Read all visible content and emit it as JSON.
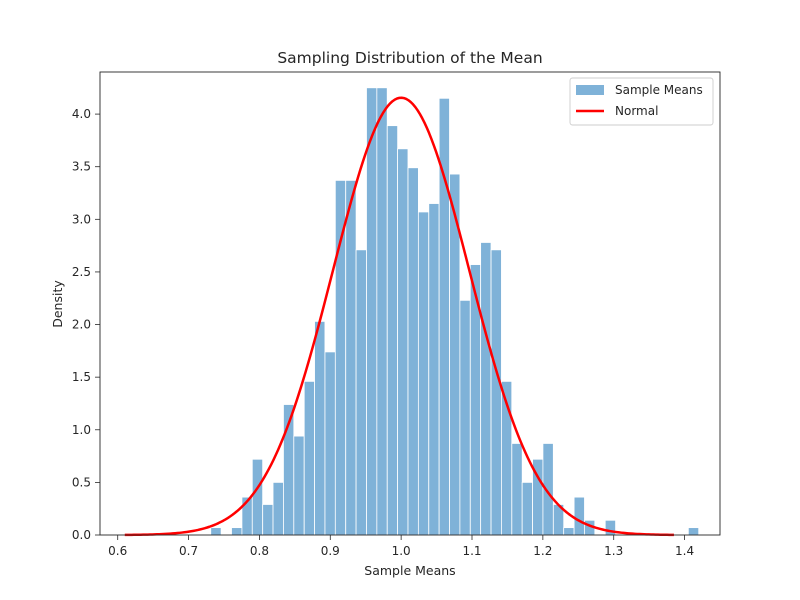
{
  "chart_data": {
    "type": "bar",
    "title": "Sampling Distribution of the Mean",
    "xlabel": "Sample Means",
    "ylabel": "Density",
    "xlim": [
      0.575,
      1.45
    ],
    "ylim": [
      0,
      4.4
    ],
    "xticks": [
      "0.6",
      "0.7",
      "0.8",
      "0.9",
      "1.0",
      "1.1",
      "1.2",
      "1.3",
      "1.4"
    ],
    "yticks": [
      "0.0",
      "0.5",
      "1.0",
      "1.5",
      "2.0",
      "2.5",
      "3.0",
      "3.5",
      "4.0"
    ],
    "grid": false,
    "legend_position": "top-right",
    "series": [
      {
        "name": "Sample Means",
        "kind": "histogram",
        "color": "#7fb2d8",
        "bin_width": 0.01465,
        "bins": [
          {
            "x0": 0.7313,
            "value": 0.07
          },
          {
            "x0": 0.7606,
            "value": 0.07
          },
          {
            "x0": 0.7753,
            "value": 0.36
          },
          {
            "x0": 0.7899,
            "value": 0.72
          },
          {
            "x0": 0.8046,
            "value": 0.29
          },
          {
            "x0": 0.8192,
            "value": 0.5
          },
          {
            "x0": 0.8339,
            "value": 1.24
          },
          {
            "x0": 0.8485,
            "value": 0.94
          },
          {
            "x0": 0.8632,
            "value": 1.46
          },
          {
            "x0": 0.8778,
            "value": 2.03
          },
          {
            "x0": 0.8925,
            "value": 1.74
          },
          {
            "x0": 0.9071,
            "value": 3.37
          },
          {
            "x0": 0.9218,
            "value": 3.37
          },
          {
            "x0": 0.9364,
            "value": 2.71
          },
          {
            "x0": 0.9511,
            "value": 4.25
          },
          {
            "x0": 0.9657,
            "value": 4.25
          },
          {
            "x0": 0.9804,
            "value": 3.89
          },
          {
            "x0": 0.995,
            "value": 3.67
          },
          {
            "x0": 1.0097,
            "value": 3.49
          },
          {
            "x0": 1.0243,
            "value": 3.07
          },
          {
            "x0": 1.039,
            "value": 3.15
          },
          {
            "x0": 1.0536,
            "value": 4.15
          },
          {
            "x0": 1.0683,
            "value": 3.43
          },
          {
            "x0": 1.0829,
            "value": 2.23
          },
          {
            "x0": 1.0976,
            "value": 2.57
          },
          {
            "x0": 1.1122,
            "value": 2.78
          },
          {
            "x0": 1.1269,
            "value": 2.71
          },
          {
            "x0": 1.1415,
            "value": 1.46
          },
          {
            "x0": 1.1562,
            "value": 0.87
          },
          {
            "x0": 1.1708,
            "value": 0.5
          },
          {
            "x0": 1.1855,
            "value": 0.72
          },
          {
            "x0": 1.2001,
            "value": 0.87
          },
          {
            "x0": 1.2148,
            "value": 0.29
          },
          {
            "x0": 1.2294,
            "value": 0.07
          },
          {
            "x0": 1.2441,
            "value": 0.36
          },
          {
            "x0": 1.2587,
            "value": 0.14
          },
          {
            "x0": 1.288,
            "value": 0.14
          },
          {
            "x0": 1.4053,
            "value": 0.07
          }
        ]
      },
      {
        "name": "Normal",
        "kind": "line",
        "color": "#ff0000",
        "x_range": [
          0.61,
          1.385
        ],
        "mean": 1.0,
        "std": 0.096
      }
    ]
  }
}
